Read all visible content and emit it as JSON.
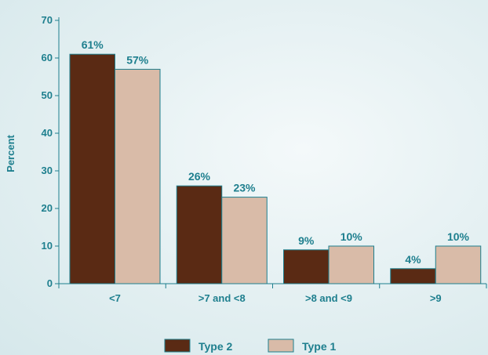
{
  "chart_data": {
    "type": "bar",
    "title": "",
    "xlabel": "",
    "ylabel": "Percent",
    "ylim": [
      0,
      70
    ],
    "yticks": [
      0,
      10,
      20,
      30,
      40,
      50,
      60,
      70
    ],
    "categories": [
      "<7",
      ">7 and <8",
      ">8 and <9",
      ">9"
    ],
    "series": [
      {
        "name": "Type 2",
        "values": [
          61,
          26,
          9,
          4
        ],
        "labels": [
          "61%",
          "26%",
          "9%",
          "4%"
        ],
        "color": "#5a2a14"
      },
      {
        "name": "Type 1",
        "values": [
          57,
          23,
          10,
          10
        ],
        "labels": [
          "57%",
          "23%",
          "10%",
          "10%"
        ],
        "color": "#d9bba8"
      }
    ],
    "axis_color": "#1e7f8e",
    "grid": false,
    "legend_position": "bottom"
  }
}
